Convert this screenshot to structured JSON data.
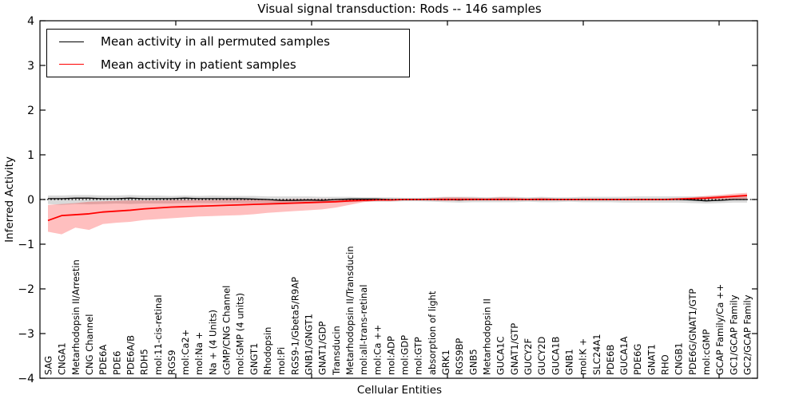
{
  "chart_data": {
    "type": "line",
    "title": "Visual signal transduction: Rods -- 146 samples",
    "xlabel": "Cellular Entities",
    "ylabel": "Inferred Activity",
    "ylim": [
      -4,
      4
    ],
    "yticks": [
      -4,
      -3,
      -2,
      -1,
      0,
      1,
      2,
      3,
      4
    ],
    "grid": false,
    "legend_position": "upper left",
    "zero_line": {
      "style": "dotted",
      "color": "#000000",
      "y": 0
    },
    "categories": [
      "SAG",
      "CNGA1",
      "Metarhodopsin II/Arrestin",
      "CNG Channel",
      "PDE6A",
      "PDE6",
      "PDE6A/B",
      "RDH5",
      "mol:11-cis-retinal",
      "RGS9",
      "mol:Ca2+",
      "mol:Na +",
      "Na + (4 Units)",
      "cGMP/CNG Channel",
      "mol:GMP (4 units)",
      "GNGT1",
      "Rhodopsin",
      "mol:Pi",
      "RGS9-1/Gbeta5/R9AP",
      "GNB1/GNGT1",
      "GNAT1/GDP",
      "Transducin",
      "Metarhodopsin II/Transducin",
      "mol:all-trans-retinal",
      "mol:Ca ++",
      "mol:ADP",
      "mol:GDP",
      "mol:GTP",
      "absorption of light",
      "GRK1",
      "RGS9BP",
      "GNB5",
      "Metarhodopsin II",
      "GUCA1C",
      "GNAT1/GTP",
      "GUCY2F",
      "GUCY2D",
      "GUCA1B",
      "GNB1",
      "mol:K +",
      "SLC24A1",
      "PDE6B",
      "GUCA1A",
      "PDE6G",
      "GNAT1",
      "RHO",
      "CNGB1",
      "PDE6G/GNAT1/GTP",
      "mol:cGMP",
      "GCAP Family/Ca ++",
      "GC1/GCAP Family",
      "GC2/GCAP Family"
    ],
    "series": [
      {
        "name": "Mean activity in all permuted samples",
        "color": "#000000",
        "values": [
          0.02,
          0.02,
          0.03,
          0.03,
          0.02,
          0.02,
          0.03,
          0.02,
          0.02,
          0.02,
          0.03,
          0.02,
          0.02,
          0.02,
          0.02,
          0.01,
          0.0,
          -0.02,
          -0.02,
          -0.01,
          -0.02,
          0.0,
          0.01,
          0.01,
          0.01,
          0.0,
          0.0,
          0.0,
          0.0,
          0.0,
          -0.01,
          0.0,
          0.0,
          0.0,
          0.0,
          0.0,
          0.0,
          0.0,
          0.0,
          0.0,
          0.0,
          0.0,
          0.0,
          0.0,
          0.0,
          0.0,
          0.0,
          -0.01,
          -0.03,
          -0.02,
          0.0,
          0.0
        ],
        "band": {
          "lower": [
            -0.1,
            -0.12,
            -0.1,
            -0.11,
            -0.1,
            -0.09,
            -0.1,
            -0.09,
            -0.09,
            -0.09,
            -0.08,
            -0.08,
            -0.08,
            -0.08,
            -0.08,
            -0.08,
            -0.08,
            -0.08,
            -0.07,
            -0.07,
            -0.07,
            -0.06,
            -0.06,
            -0.05,
            -0.05,
            -0.05,
            -0.04,
            -0.04,
            -0.05,
            -0.06,
            -0.07,
            -0.06,
            -0.06,
            -0.06,
            -0.06,
            -0.05,
            -0.06,
            -0.06,
            -0.05,
            -0.06,
            -0.06,
            -0.06,
            -0.07,
            -0.07,
            -0.07,
            -0.07,
            -0.07,
            -0.08,
            -0.09,
            -0.08,
            -0.07,
            -0.07
          ],
          "upper": [
            0.09,
            0.09,
            0.1,
            0.1,
            0.09,
            0.09,
            0.1,
            0.09,
            0.09,
            0.08,
            0.09,
            0.08,
            0.09,
            0.08,
            0.08,
            0.08,
            0.07,
            0.07,
            0.07,
            0.07,
            0.06,
            0.06,
            0.06,
            0.05,
            0.05,
            0.05,
            0.04,
            0.04,
            0.05,
            0.06,
            0.06,
            0.06,
            0.05,
            0.06,
            0.06,
            0.05,
            0.06,
            0.05,
            0.05,
            0.06,
            0.06,
            0.06,
            0.06,
            0.07,
            0.07,
            0.07,
            0.07,
            0.07,
            0.07,
            0.08,
            0.08,
            0.08
          ],
          "color": "#000000",
          "opacity": 0.15
        }
      },
      {
        "name": "Mean activity in patient samples",
        "color": "#ff0000",
        "values": [
          -0.47,
          -0.36,
          -0.34,
          -0.32,
          -0.28,
          -0.26,
          -0.24,
          -0.21,
          -0.19,
          -0.17,
          -0.16,
          -0.15,
          -0.14,
          -0.13,
          -0.12,
          -0.11,
          -0.1,
          -0.09,
          -0.08,
          -0.07,
          -0.06,
          -0.05,
          -0.03,
          -0.02,
          -0.01,
          -0.01,
          0.0,
          0.0,
          0.0,
          0.0,
          0.0,
          0.0,
          0.0,
          0.0,
          0.0,
          0.0,
          0.0,
          0.0,
          0.0,
          0.0,
          0.0,
          0.0,
          0.0,
          0.0,
          0.0,
          0.0,
          0.01,
          0.02,
          0.03,
          0.05,
          0.07,
          0.09
        ],
        "band": {
          "lower": [
            -0.72,
            -0.78,
            -0.63,
            -0.68,
            -0.55,
            -0.52,
            -0.5,
            -0.46,
            -0.44,
            -0.42,
            -0.4,
            -0.38,
            -0.37,
            -0.36,
            -0.35,
            -0.33,
            -0.3,
            -0.28,
            -0.26,
            -0.24,
            -0.22,
            -0.18,
            -0.12,
            -0.06,
            -0.03,
            -0.02,
            -0.01,
            -0.01,
            -0.02,
            -0.03,
            -0.02,
            -0.02,
            -0.01,
            -0.02,
            -0.01,
            -0.01,
            -0.02,
            -0.01,
            -0.01,
            -0.01,
            -0.01,
            -0.01,
            -0.01,
            -0.01,
            -0.01,
            -0.01,
            -0.01,
            0.0,
            0.0,
            0.0,
            0.01,
            0.01
          ],
          "upper": [
            -0.12,
            -0.1,
            -0.08,
            -0.05,
            -0.04,
            -0.03,
            -0.02,
            -0.02,
            -0.02,
            -0.01,
            -0.01,
            -0.01,
            -0.01,
            0.0,
            0.0,
            0.0,
            0.0,
            0.0,
            0.01,
            0.01,
            0.01,
            0.01,
            0.01,
            0.01,
            0.01,
            0.01,
            0.01,
            0.01,
            0.03,
            0.05,
            0.05,
            0.04,
            0.03,
            0.05,
            0.04,
            0.02,
            0.04,
            0.02,
            0.01,
            0.01,
            0.01,
            0.01,
            0.01,
            0.01,
            0.01,
            0.02,
            0.03,
            0.05,
            0.08,
            0.1,
            0.13,
            0.15
          ],
          "color": "#ff0000",
          "opacity": 0.25
        }
      }
    ]
  }
}
